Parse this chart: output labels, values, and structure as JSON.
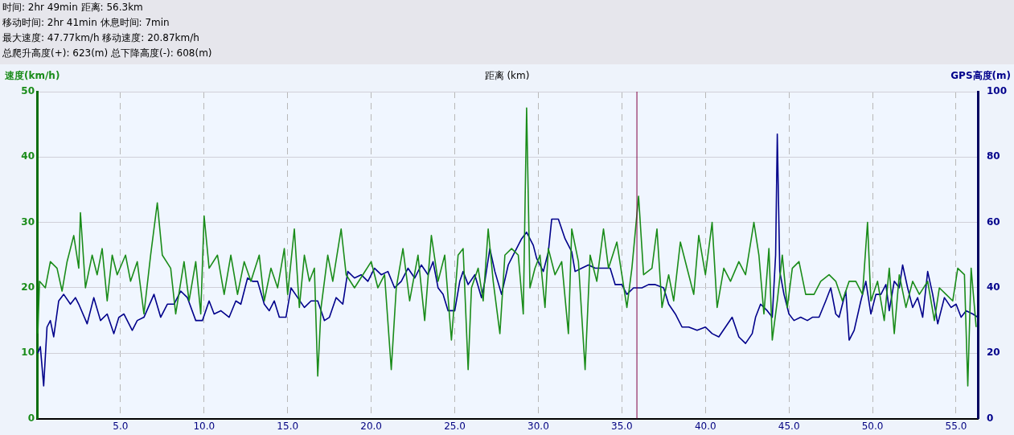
{
  "chart_data": {
    "type": "line",
    "xlabel": "距离 (km)",
    "ylabel": "速度(km/h)",
    "y2label": "GPS高度(m)",
    "annotations": [
      "时间: 2hr 49min   距离: 56.3km",
      "移动时间: 2hr 41min   休息时间: 7min",
      "最大速度: 47.77km/h   移动速度: 20.87km/h",
      "总爬升高度(+): 623(m)   总下降高度(-): 608(m)"
    ],
    "xlim": [
      0,
      56.3
    ],
    "xticks": [
      {
        "value": 5,
        "label": "5.0"
      },
      {
        "value": 10,
        "label": "10.0"
      },
      {
        "value": 15,
        "label": "15.0"
      },
      {
        "value": 20,
        "label": "20.0"
      },
      {
        "value": 25,
        "label": "25.0"
      },
      {
        "value": 30,
        "label": "30.0"
      },
      {
        "value": 35,
        "label": "35.0"
      },
      {
        "value": 40,
        "label": "40.0"
      },
      {
        "value": 45,
        "label": "45.0"
      },
      {
        "value": 50,
        "label": "50.0"
      },
      {
        "value": 55,
        "label": "55.0"
      }
    ],
    "ylim": [
      0,
      50
    ],
    "yticks": [
      0,
      10,
      20,
      30,
      40,
      50
    ],
    "y2lim": [
      0,
      100
    ],
    "y2ticks": [
      0,
      20,
      40,
      60,
      80,
      100
    ],
    "grid": true,
    "legend": false,
    "marker": "none",
    "line_style": "solid",
    "ref_lines": [
      {
        "axis": "x",
        "value": 35.9,
        "color": "#800040"
      }
    ],
    "series": [
      {
        "color": "#1a8c1a",
        "x": [
          0.05,
          0.15,
          0.5,
          0.8,
          1.2,
          1.5,
          1.8,
          2.2,
          2.5,
          2.6,
          2.9,
          3.3,
          3.6,
          3.9,
          4.2,
          4.5,
          4.8,
          5.3,
          5.6,
          6.0,
          6.4,
          6.8,
          7.2,
          7.5,
          8.0,
          8.3,
          8.8,
          9.1,
          9.5,
          9.8,
          10.0,
          10.3,
          10.8,
          11.2,
          11.6,
          12.0,
          12.4,
          12.8,
          13.3,
          13.6,
          14.0,
          14.4,
          14.8,
          15.0,
          15.4,
          15.7,
          16.0,
          16.3,
          16.6,
          16.8,
          17.0,
          17.4,
          17.7,
          18.2,
          18.5,
          19.0,
          19.5,
          20.0,
          20.4,
          20.8,
          21.2,
          21.5,
          21.9,
          22.3,
          22.8,
          23.2,
          23.6,
          24.0,
          24.4,
          24.8,
          25.2,
          25.5,
          25.8,
          26.0,
          26.4,
          26.7,
          27.0,
          27.3,
          27.7,
          28.0,
          28.4,
          28.8,
          29.1,
          29.3,
          29.5,
          29.8,
          30.1,
          30.4,
          30.6,
          31.0,
          31.4,
          31.8,
          32.0,
          32.4,
          32.8,
          33.1,
          33.5,
          33.9,
          34.2,
          34.7,
          35.0,
          35.3,
          35.6,
          36.0,
          36.3,
          36.8,
          37.1,
          37.4,
          37.8,
          38.1,
          38.5,
          38.9,
          39.3,
          39.6,
          40.0,
          40.4,
          40.7,
          41.1,
          41.5,
          42.0,
          42.4,
          42.9,
          43.2,
          43.5,
          43.8,
          44.0,
          44.3,
          44.6,
          44.9,
          45.2,
          45.6,
          46.0,
          46.5,
          46.9,
          47.4,
          47.8,
          48.2,
          48.6,
          49.0,
          49.4,
          49.7,
          49.9,
          50.3,
          50.7,
          51.0,
          51.3,
          51.6,
          52.0,
          52.4,
          52.8,
          53.3,
          53.7,
          54.0,
          54.4,
          54.8,
          55.1,
          55.5,
          55.7,
          55.9,
          56.2
        ],
        "values": [
          13,
          21,
          20,
          24,
          23,
          19.5,
          24,
          28,
          23,
          31.5,
          20,
          25,
          22,
          26,
          18,
          25,
          22,
          25,
          21,
          24,
          16,
          25,
          33,
          25,
          23,
          16,
          24,
          18,
          24,
          16,
          31,
          23,
          25,
          19,
          25,
          19,
          24,
          21,
          25,
          18,
          23,
          20,
          26,
          19,
          29,
          17,
          25,
          21,
          23,
          6.5,
          17,
          25,
          21,
          29,
          22,
          20,
          22,
          24,
          20,
          22,
          7.5,
          20,
          26,
          18,
          25,
          15,
          28,
          21,
          25,
          12,
          25,
          26,
          7.5,
          20,
          23,
          18,
          29,
          21,
          13,
          25,
          26,
          25,
          16,
          47.5,
          20,
          23,
          25,
          17,
          26,
          22,
          24,
          13,
          29,
          24,
          7.5,
          25,
          21,
          29,
          23,
          27,
          22,
          17,
          23,
          34,
          22,
          23,
          29,
          17,
          22,
          18,
          27,
          23,
          19,
          28,
          22,
          30,
          17,
          23,
          21,
          24,
          22,
          30,
          25,
          16,
          26,
          12,
          18,
          25,
          17,
          23,
          24,
          19,
          19,
          21,
          22,
          21,
          18,
          21,
          21,
          19,
          30,
          18,
          21,
          15,
          23,
          13,
          22,
          17,
          21,
          19,
          21,
          15,
          20,
          19,
          18,
          23,
          22,
          5,
          23,
          14
        ]
      },
      {
        "color": "#00008b",
        "axis": "y2",
        "x": [
          0.05,
          0.2,
          0.4,
          0.6,
          0.8,
          1.0,
          1.3,
          1.6,
          2.0,
          2.3,
          2.5,
          3.0,
          3.4,
          3.8,
          4.2,
          4.6,
          4.9,
          5.2,
          5.7,
          6.0,
          6.4,
          7.0,
          7.4,
          7.8,
          8.2,
          8.6,
          9.0,
          9.5,
          9.9,
          10.3,
          10.6,
          11.0,
          11.5,
          11.9,
          12.2,
          12.6,
          12.9,
          13.2,
          13.6,
          13.9,
          14.2,
          14.5,
          14.9,
          15.2,
          15.6,
          16.0,
          16.4,
          16.8,
          17.2,
          17.5,
          17.9,
          18.3,
          18.6,
          19.0,
          19.4,
          19.8,
          20.2,
          20.6,
          21.0,
          21.4,
          21.8,
          22.2,
          22.6,
          23.0,
          23.4,
          23.7,
          24.0,
          24.3,
          24.6,
          25.0,
          25.3,
          25.5,
          25.8,
          26.2,
          26.6,
          26.8,
          27.1,
          27.4,
          27.8,
          28.2,
          28.6,
          29.0,
          29.3,
          29.7,
          29.9,
          30.3,
          30.6,
          30.8,
          31.2,
          31.6,
          32.0,
          32.2,
          32.6,
          33.0,
          33.4,
          34.0,
          34.3,
          34.6,
          35.0,
          35.3,
          35.7,
          36.2,
          36.6,
          37.0,
          37.5,
          37.8,
          38.2,
          38.6,
          39.0,
          39.5,
          40.0,
          40.4,
          40.8,
          41.2,
          41.6,
          42.0,
          42.4,
          42.8,
          43.0,
          43.3,
          43.7,
          44.0,
          44.2,
          44.3,
          44.45,
          44.7,
          45.0,
          45.3,
          45.7,
          46.1,
          46.4,
          46.8,
          47.2,
          47.5,
          47.8,
          48.0,
          48.4,
          48.6,
          48.9,
          49.3,
          49.6,
          49.9,
          50.2,
          50.5,
          50.8,
          51.0,
          51.3,
          51.6,
          51.8,
          52.1,
          52.4,
          52.7,
          53.0,
          53.3,
          53.6,
          53.9,
          54.3,
          54.7,
          55.0,
          55.3,
          55.6,
          56.0,
          56.3
        ],
        "values": [
          20,
          22,
          10,
          28,
          30,
          25,
          36,
          38,
          35,
          37,
          35,
          29,
          37,
          30,
          32,
          26,
          31,
          32,
          27,
          30,
          31,
          38,
          31,
          35,
          35,
          39,
          37,
          30,
          30,
          36,
          32,
          33,
          31,
          36,
          35,
          43,
          42,
          42,
          35,
          33,
          36,
          31,
          31,
          40,
          37,
          34,
          36,
          36,
          30,
          31,
          37,
          35,
          45,
          43,
          44,
          42,
          46,
          44,
          45,
          40,
          42,
          46,
          43,
          47,
          44,
          48,
          40,
          38,
          33,
          33,
          42,
          45,
          41,
          44,
          37,
          42,
          52,
          45,
          38,
          47,
          51,
          55,
          57,
          53,
          49,
          45,
          51,
          61,
          61,
          55,
          51,
          45,
          46,
          47,
          46,
          46,
          46,
          41,
          41,
          38,
          40,
          40,
          41,
          41,
          40,
          35,
          32,
          28,
          28,
          27,
          28,
          26,
          25,
          28,
          31,
          25,
          23,
          26,
          31,
          35,
          33,
          31,
          50,
          87,
          45,
          38,
          32,
          30,
          31,
          30,
          31,
          31,
          36,
          40,
          32,
          31,
          39,
          24,
          27,
          36,
          42,
          32,
          38,
          38,
          41,
          33,
          42,
          40,
          47,
          40,
          34,
          37,
          31,
          45,
          38,
          29,
          37,
          34,
          35,
          31,
          33,
          32,
          31
        ]
      }
    ]
  }
}
